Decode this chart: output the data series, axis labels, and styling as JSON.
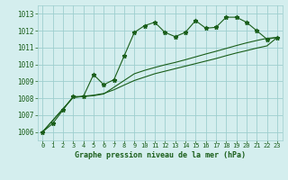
{
  "title": "Graphe pression niveau de la mer (hPa)",
  "bg_color": "#d4eeee",
  "grid_color": "#9ecece",
  "line_color": "#1a5e1a",
  "xlim": [
    -0.5,
    23.5
  ],
  "ylim": [
    1005.5,
    1013.5
  ],
  "xticks": [
    0,
    1,
    2,
    3,
    4,
    5,
    6,
    7,
    8,
    9,
    10,
    11,
    12,
    13,
    14,
    15,
    16,
    17,
    18,
    19,
    20,
    21,
    22,
    23
  ],
  "yticks": [
    1006,
    1007,
    1008,
    1009,
    1010,
    1011,
    1012,
    1013
  ],
  "line1_x": [
    0,
    1,
    2,
    3,
    4,
    5,
    6,
    7,
    8,
    9,
    10,
    11,
    12,
    13,
    14,
    15,
    16,
    17,
    18,
    19,
    20,
    21,
    22,
    23
  ],
  "line1_y": [
    1006.0,
    1006.5,
    1007.3,
    1008.1,
    1008.1,
    1009.4,
    1008.8,
    1009.1,
    1010.5,
    1011.9,
    1012.3,
    1012.5,
    1011.9,
    1011.65,
    1011.9,
    1012.6,
    1012.15,
    1012.2,
    1012.8,
    1012.8,
    1012.5,
    1012.0,
    1011.5,
    1011.6
  ],
  "line2_x": [
    0,
    3,
    4,
    5,
    6,
    7,
    8,
    9,
    10,
    11,
    12,
    13,
    14,
    15,
    16,
    17,
    18,
    19,
    20,
    21,
    22,
    23
  ],
  "line2_y": [
    1006.0,
    1008.05,
    1008.1,
    1008.15,
    1008.25,
    1008.65,
    1009.05,
    1009.45,
    1009.65,
    1009.82,
    1009.98,
    1010.12,
    1010.28,
    1010.45,
    1010.62,
    1010.78,
    1010.95,
    1011.12,
    1011.28,
    1011.42,
    1011.55,
    1011.6
  ],
  "line3_x": [
    0,
    3,
    4,
    5,
    6,
    7,
    8,
    9,
    10,
    11,
    12,
    13,
    14,
    15,
    16,
    17,
    18,
    19,
    20,
    21,
    22,
    23
  ],
  "line3_y": [
    1006.0,
    1008.05,
    1008.12,
    1008.18,
    1008.28,
    1008.5,
    1008.78,
    1009.05,
    1009.25,
    1009.45,
    1009.6,
    1009.75,
    1009.9,
    1010.05,
    1010.2,
    1010.35,
    1010.52,
    1010.68,
    1010.82,
    1010.97,
    1011.1,
    1011.6
  ],
  "xlabel_fontsize": 6.0,
  "ylabel_fontsize": 5.5,
  "tick_fontsize": 5.0,
  "lw": 0.8,
  "marker": "*",
  "markersize": 3.5
}
